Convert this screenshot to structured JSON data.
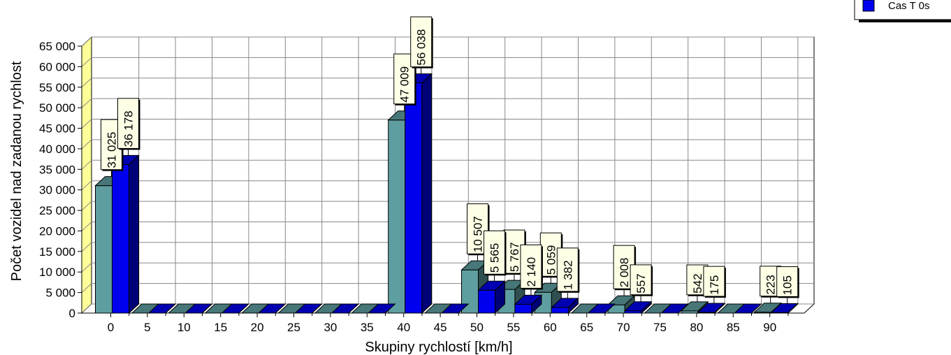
{
  "chart_data": {
    "type": "bar",
    "xlabel": "Skupiny rychlostí [km/h]",
    "ylabel": "Počet vozidel nad zadanou rychlost",
    "ylim": [
      0,
      65000
    ],
    "yticks": [
      0,
      5000,
      10000,
      15000,
      20000,
      25000,
      30000,
      35000,
      40000,
      45000,
      50000,
      55000,
      60000,
      65000
    ],
    "ytick_labels": [
      "0",
      "5 000",
      "10 000",
      "15 000",
      "20 000",
      "25 000",
      "30 000",
      "35 000",
      "40 000",
      "45 000",
      "50 000",
      "55 000",
      "60 000",
      "65 000"
    ],
    "categories": [
      "0",
      "5",
      "10",
      "15",
      "20",
      "25",
      "30",
      "35",
      "40",
      "45",
      "50",
      "55",
      "60",
      "65",
      "70",
      "75",
      "80",
      "85",
      "90"
    ],
    "grid": true,
    "legend_position": "top-right",
    "series": [
      {
        "color": "#5f9ea0",
        "values": [
          31025,
          0,
          0,
          0,
          0,
          0,
          0,
          0,
          47009,
          0,
          10507,
          5767,
          5059,
          0,
          2008,
          0,
          542,
          0,
          223
        ],
        "labels": [
          "31 025",
          "",
          "",
          "",
          "",
          "",
          "",
          "",
          "47 009",
          "",
          "10 507",
          "5 767",
          "5 059",
          "",
          "2 008",
          "",
          "542",
          "",
          "223"
        ]
      },
      {
        "name": "Cas T 0s",
        "color": "#0000ee",
        "values": [
          36178,
          0,
          0,
          0,
          0,
          0,
          0,
          0,
          56038,
          0,
          5565,
          2140,
          1382,
          0,
          557,
          0,
          175,
          0,
          105
        ],
        "labels": [
          "36 178",
          "",
          "",
          "",
          "",
          "",
          "",
          "",
          "56 038",
          "",
          "5 565",
          "2 140",
          "1 382",
          "",
          "557",
          "",
          "175",
          "",
          "105"
        ]
      }
    ]
  }
}
